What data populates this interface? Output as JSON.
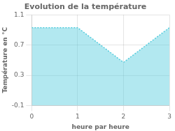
{
  "chart_data": {
    "type": "area",
    "title": "Evolution de la température",
    "xlabel": "heure par heure",
    "ylabel": "Température en °C",
    "x": [
      0,
      1,
      2,
      3
    ],
    "values": [
      0.93,
      0.93,
      0.47,
      0.93
    ],
    "xlim": [
      0,
      3
    ],
    "ylim": [
      -0.1,
      1.1
    ],
    "xticks": [
      0,
      1,
      2,
      3
    ],
    "yticks": [
      -0.1,
      0.3,
      0.7,
      1.1
    ],
    "grid": true,
    "line_style": "dotted",
    "color": "#55CCDD"
  }
}
